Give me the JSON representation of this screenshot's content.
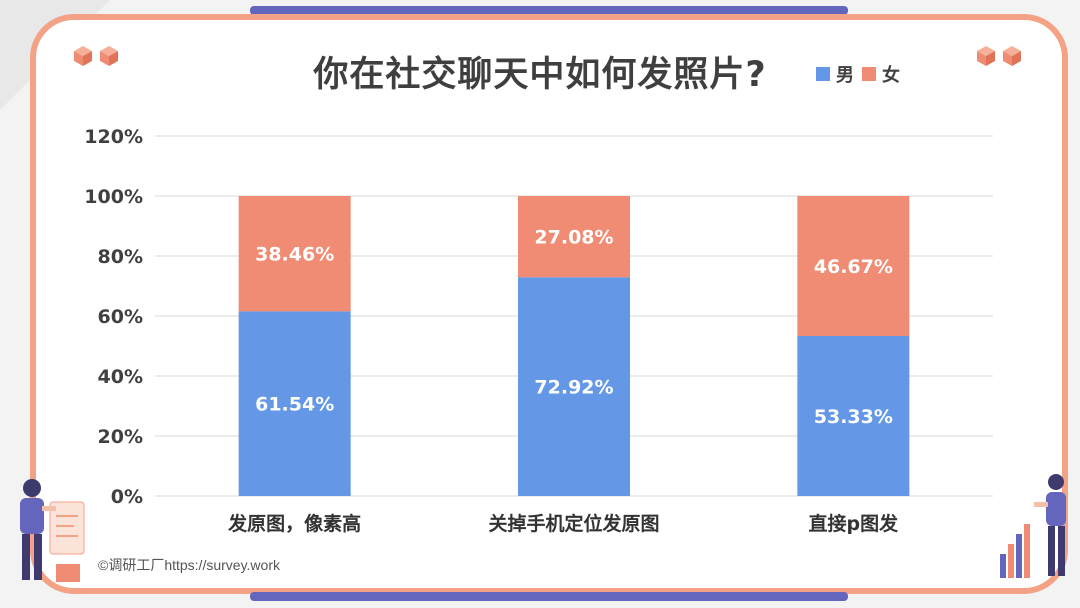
{
  "title": "你在社交聊天中如何发照片?",
  "credit": "©调研工厂https://survey.work",
  "colors": {
    "male": "#6497e6",
    "female": "#ef8c73",
    "frame": "#f4a285",
    "bar_accent": "#6466bd"
  },
  "chart_data": {
    "type": "bar",
    "stacked": true,
    "title": "你在社交聊天中如何发照片?",
    "categories": [
      "发原图，像素高",
      "关掉手机定位发原图",
      "直接p图发"
    ],
    "series": [
      {
        "name": "男",
        "values": [
          61.54,
          72.92,
          53.33
        ],
        "labels": [
          "61.54%",
          "72.92%",
          "53.33%"
        ]
      },
      {
        "name": "女",
        "values": [
          38.46,
          27.08,
          46.67
        ],
        "labels": [
          "38.46%",
          "27.08%",
          "46.67%"
        ]
      }
    ],
    "yticks": [
      "0%",
      "20%",
      "40%",
      "60%",
      "80%",
      "100%",
      "120%"
    ],
    "ylim": [
      0,
      120
    ],
    "grid": true,
    "legend": "top-right"
  }
}
